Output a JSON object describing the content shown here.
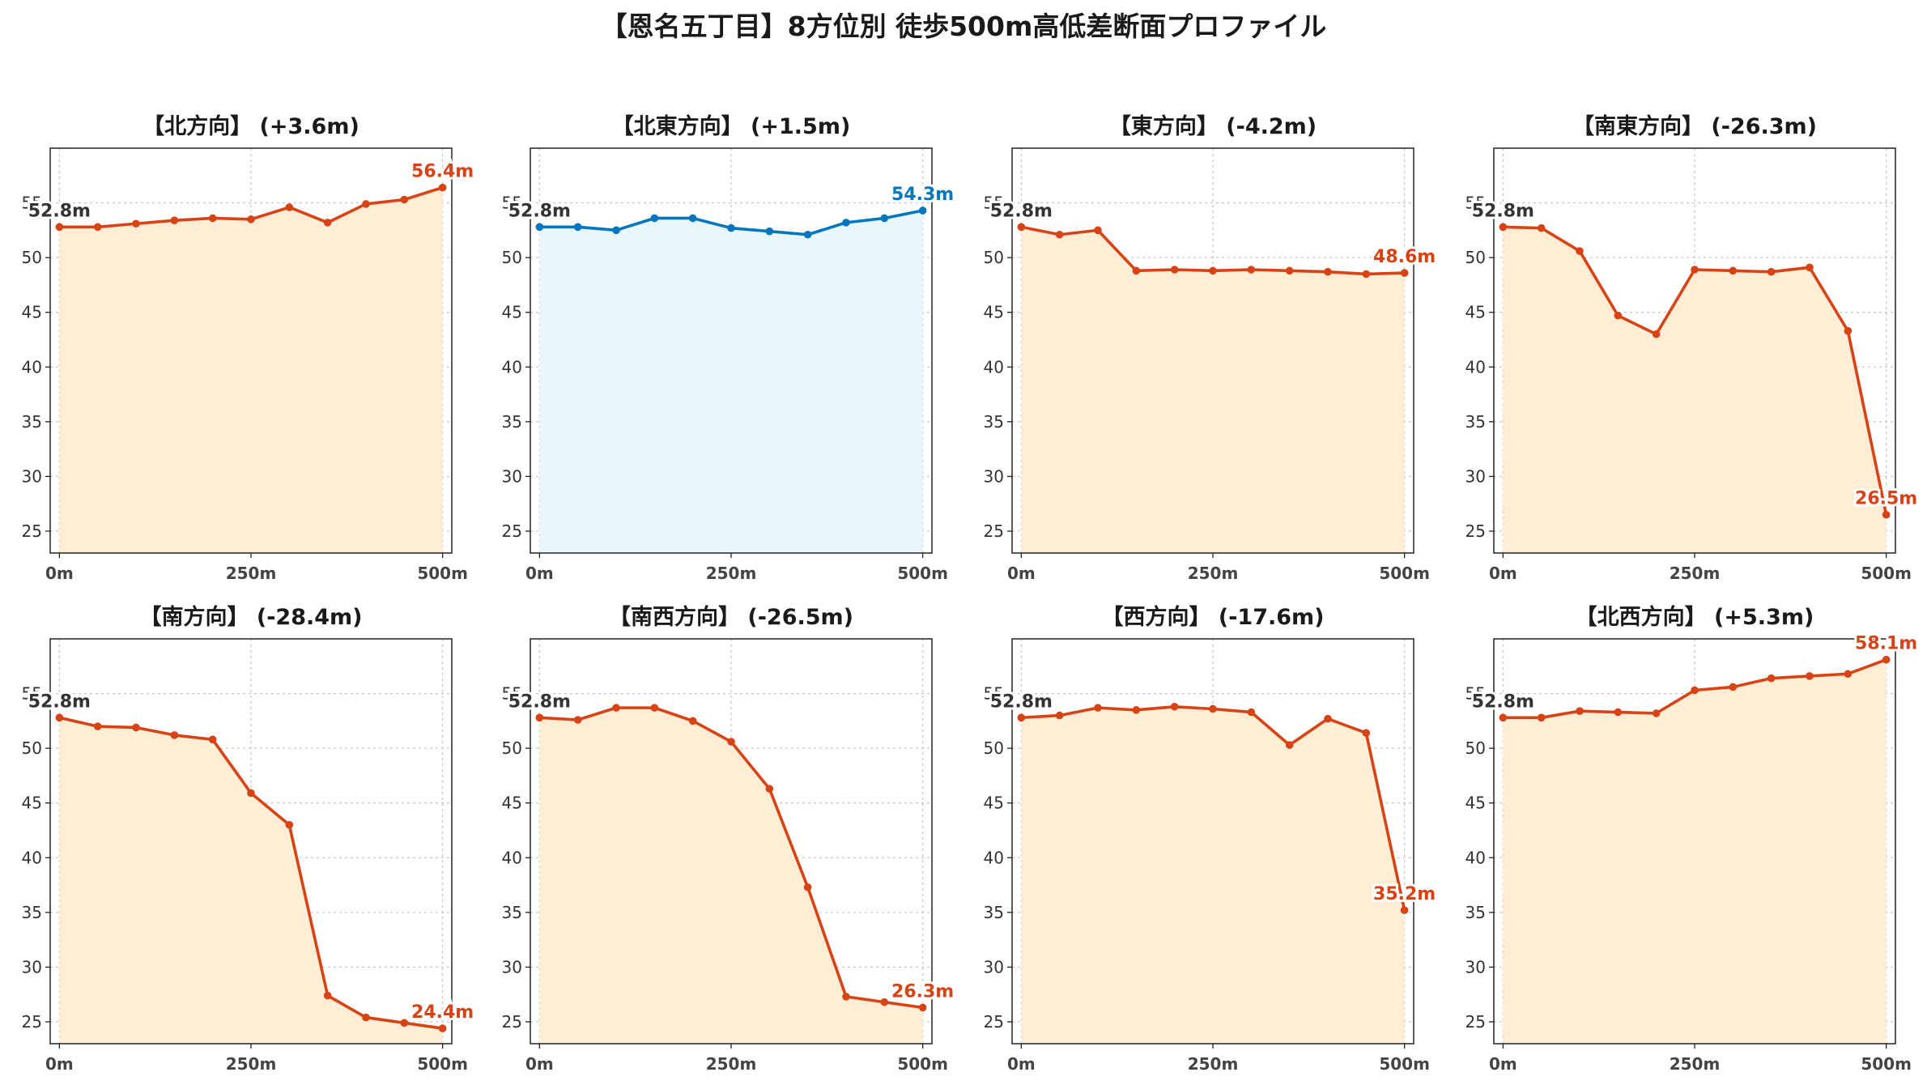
{
  "title": "【恩名五丁目】8方位別 徒歩500m高低差断面プロファイル",
  "colors": {
    "down_line": "#d84315",
    "down_fill": "#ffedd5",
    "up_line": "#0277bd",
    "up_fill": "#e9f6fb",
    "start_label": "#333333"
  },
  "chart_data": [
    {
      "type": "area",
      "title": "【北方向】 (+3.6m)",
      "x": [
        0,
        50,
        100,
        150,
        200,
        250,
        300,
        350,
        400,
        450,
        500
      ],
      "y": [
        52.8,
        52.8,
        53.1,
        53.4,
        53.6,
        53.5,
        54.6,
        53.2,
        54.9,
        55.3,
        56.4
      ],
      "xticks": [
        "0m",
        "250m",
        "500m"
      ],
      "yticks": [
        25,
        30,
        35,
        40,
        45,
        50,
        55
      ],
      "ylim": [
        23,
        60
      ],
      "start_label": "52.8m",
      "end_label": "56.4m",
      "highlight": "down"
    },
    {
      "type": "area",
      "title": "【北東方向】 (+1.5m)",
      "x": [
        0,
        50,
        100,
        150,
        200,
        250,
        300,
        350,
        400,
        450,
        500
      ],
      "y": [
        52.8,
        52.8,
        52.5,
        53.6,
        53.6,
        52.7,
        52.4,
        52.1,
        53.2,
        53.6,
        54.3
      ],
      "xticks": [
        "0m",
        "250m",
        "500m"
      ],
      "yticks": [
        25,
        30,
        35,
        40,
        45,
        50,
        55
      ],
      "ylim": [
        23,
        60
      ],
      "start_label": "52.8m",
      "end_label": "54.3m",
      "highlight": "up"
    },
    {
      "type": "area",
      "title": "【東方向】 (-4.2m)",
      "x": [
        0,
        50,
        100,
        150,
        200,
        250,
        300,
        350,
        400,
        450,
        500
      ],
      "y": [
        52.8,
        52.1,
        52.5,
        48.8,
        48.9,
        48.8,
        48.9,
        48.8,
        48.7,
        48.5,
        48.6
      ],
      "xticks": [
        "0m",
        "250m",
        "500m"
      ],
      "yticks": [
        25,
        30,
        35,
        40,
        45,
        50,
        55
      ],
      "ylim": [
        23,
        60
      ],
      "start_label": "52.8m",
      "end_label": "48.6m",
      "highlight": "down"
    },
    {
      "type": "area",
      "title": "【南東方向】 (-26.3m)",
      "x": [
        0,
        50,
        100,
        150,
        200,
        250,
        300,
        350,
        400,
        450,
        500
      ],
      "y": [
        52.8,
        52.7,
        50.6,
        44.7,
        43.0,
        48.9,
        48.8,
        48.7,
        49.1,
        43.3,
        26.5
      ],
      "xticks": [
        "0m",
        "250m",
        "500m"
      ],
      "yticks": [
        25,
        30,
        35,
        40,
        45,
        50,
        55
      ],
      "ylim": [
        23,
        60
      ],
      "start_label": "52.8m",
      "end_label": "26.5m",
      "highlight": "down"
    },
    {
      "type": "area",
      "title": "【南方向】 (-28.4m)",
      "x": [
        0,
        50,
        100,
        150,
        200,
        250,
        300,
        350,
        400,
        450,
        500
      ],
      "y": [
        52.8,
        52.0,
        51.9,
        51.2,
        50.8,
        45.9,
        43.0,
        27.4,
        25.4,
        24.9,
        24.4
      ],
      "xticks": [
        "0m",
        "250m",
        "500m"
      ],
      "yticks": [
        25,
        30,
        35,
        40,
        45,
        50,
        55
      ],
      "ylim": [
        23,
        60
      ],
      "start_label": "52.8m",
      "end_label": "24.4m",
      "highlight": "down"
    },
    {
      "type": "area",
      "title": "【南西方向】 (-26.5m)",
      "x": [
        0,
        50,
        100,
        150,
        200,
        250,
        300,
        350,
        400,
        450,
        500
      ],
      "y": [
        52.8,
        52.6,
        53.7,
        53.7,
        52.5,
        50.6,
        46.3,
        37.3,
        27.3,
        26.8,
        26.3
      ],
      "xticks": [
        "0m",
        "250m",
        "500m"
      ],
      "yticks": [
        25,
        30,
        35,
        40,
        45,
        50,
        55
      ],
      "ylim": [
        23,
        60
      ],
      "start_label": "52.8m",
      "end_label": "26.3m",
      "highlight": "down"
    },
    {
      "type": "area",
      "title": "【西方向】 (-17.6m)",
      "x": [
        0,
        50,
        100,
        150,
        200,
        250,
        300,
        350,
        400,
        450,
        500
      ],
      "y": [
        52.8,
        53.0,
        53.7,
        53.5,
        53.8,
        53.6,
        53.3,
        50.3,
        52.7,
        51.4,
        35.2
      ],
      "xticks": [
        "0m",
        "250m",
        "500m"
      ],
      "yticks": [
        25,
        30,
        35,
        40,
        45,
        50,
        55
      ],
      "ylim": [
        23,
        60
      ],
      "start_label": "52.8m",
      "end_label": "35.2m",
      "highlight": "down"
    },
    {
      "type": "area",
      "title": "【北西方向】 (+5.3m)",
      "x": [
        0,
        50,
        100,
        150,
        200,
        250,
        300,
        350,
        400,
        450,
        500
      ],
      "y": [
        52.8,
        52.8,
        53.4,
        53.3,
        53.2,
        55.3,
        55.6,
        56.4,
        56.6,
        56.8,
        58.1
      ],
      "xticks": [
        "0m",
        "250m",
        "500m"
      ],
      "yticks": [
        25,
        30,
        35,
        40,
        45,
        50,
        55
      ],
      "ylim": [
        23,
        60
      ],
      "start_label": "52.8m",
      "end_label": "58.1m",
      "highlight": "down"
    }
  ]
}
